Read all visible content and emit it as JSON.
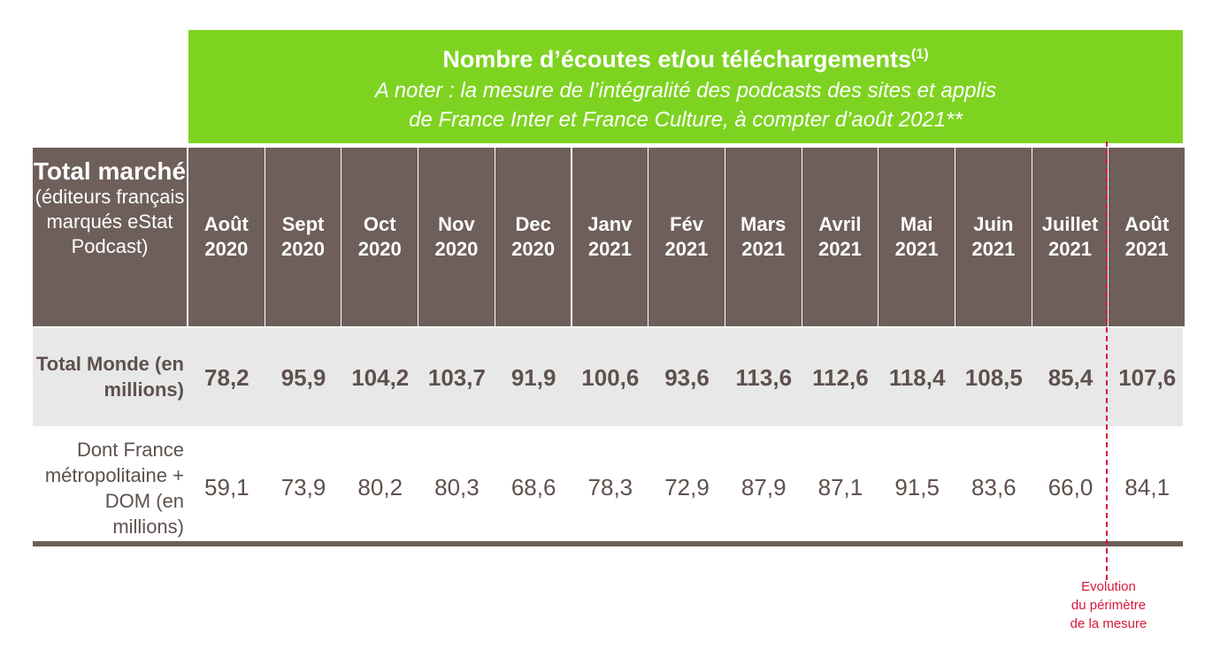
{
  "header": {
    "title": "Nombre d’écoutes et/ou téléchargements",
    "title_sup": "(1)",
    "note_line1": "A noter : la mesure de l’intégralité des podcasts des sites et applis",
    "note_line2": "de France Inter et France Culture, à compter d’août 2021**"
  },
  "row_header": {
    "big": "Total marché",
    "small": "(éditeurs français marqués eStat Podcast)"
  },
  "rows": {
    "total_label": "Total Monde (en millions)",
    "france_label": "Dont France métropolitaine + DOM (en millions)"
  },
  "annotation": {
    "line1": "Evolution",
    "line2": "du périmètre",
    "line3": "de la mesure"
  },
  "colors": {
    "banner": "#7ed321",
    "header_bg": "#6e5f5a",
    "total_row_bg": "#e8e8e8",
    "text": "#5e514d",
    "annotation": "#d9163c"
  },
  "chart_data": {
    "type": "table",
    "columns": [
      {
        "month": "Août",
        "year": "2020"
      },
      {
        "month": "Sept",
        "year": "2020"
      },
      {
        "month": "Oct",
        "year": "2020"
      },
      {
        "month": "Nov",
        "year": "2020"
      },
      {
        "month": "Dec",
        "year": "2020"
      },
      {
        "month": "Janv",
        "year": "2021"
      },
      {
        "month": "Fév",
        "year": "2021"
      },
      {
        "month": "Mars",
        "year": "2021"
      },
      {
        "month": "Avril",
        "year": "2021"
      },
      {
        "month": "Mai",
        "year": "2021"
      },
      {
        "month": "Juin",
        "year": "2021"
      },
      {
        "month": "Juillet",
        "year": "2021"
      },
      {
        "month": "Août",
        "year": "2021"
      }
    ],
    "series": [
      {
        "name": "Total Monde (en millions)",
        "values": [
          "78,2",
          "95,9",
          "104,2",
          "103,7",
          "91,9",
          "100,6",
          "93,6",
          "113,6",
          "112,6",
          "118,4",
          "108,5",
          "85,4",
          "107,6"
        ]
      },
      {
        "name": "Dont France métropolitaine + DOM (en millions)",
        "values": [
          "59,1",
          "73,9",
          "80,2",
          "80,3",
          "68,6",
          "78,3",
          "72,9",
          "87,9",
          "87,1",
          "91,5",
          "83,6",
          "66,0",
          "84,1"
        ]
      }
    ]
  }
}
